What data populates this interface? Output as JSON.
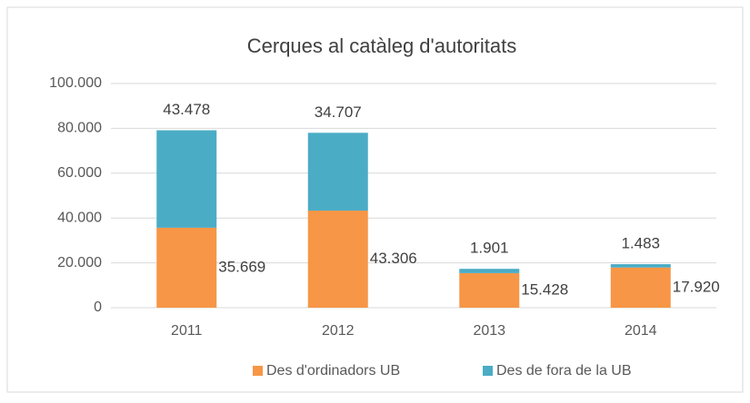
{
  "chart_data": {
    "type": "stacked_bar",
    "title": "Cerques al catàleg d'autoritats",
    "categories": [
      "2011",
      "2012",
      "2013",
      "2014"
    ],
    "series": [
      {
        "name": "Des d'ordinadors UB",
        "color": "#f79646",
        "values": [
          35669,
          43306,
          15428,
          17920
        ],
        "value_labels": [
          "35.669",
          "43.306",
          "15.428",
          "17.920"
        ]
      },
      {
        "name": "Des de fora de la UB",
        "color": "#4bacc6",
        "values": [
          43478,
          34707,
          1901,
          1483
        ],
        "value_labels": [
          "43.478",
          "34.707",
          "1.901",
          "1.483"
        ]
      }
    ],
    "ylim": [
      0,
      100000
    ],
    "yticks": [
      0,
      {
        "value": 20000,
        "label": "20.000"
      },
      {
        "value": 40000,
        "label": "40.000"
      },
      {
        "value": 60000,
        "label": "60.000"
      },
      {
        "value": 80000,
        "label": "80.000"
      },
      {
        "value": 100000,
        "label": "100.000"
      }
    ],
    "grid": true,
    "legend": "bottom"
  }
}
